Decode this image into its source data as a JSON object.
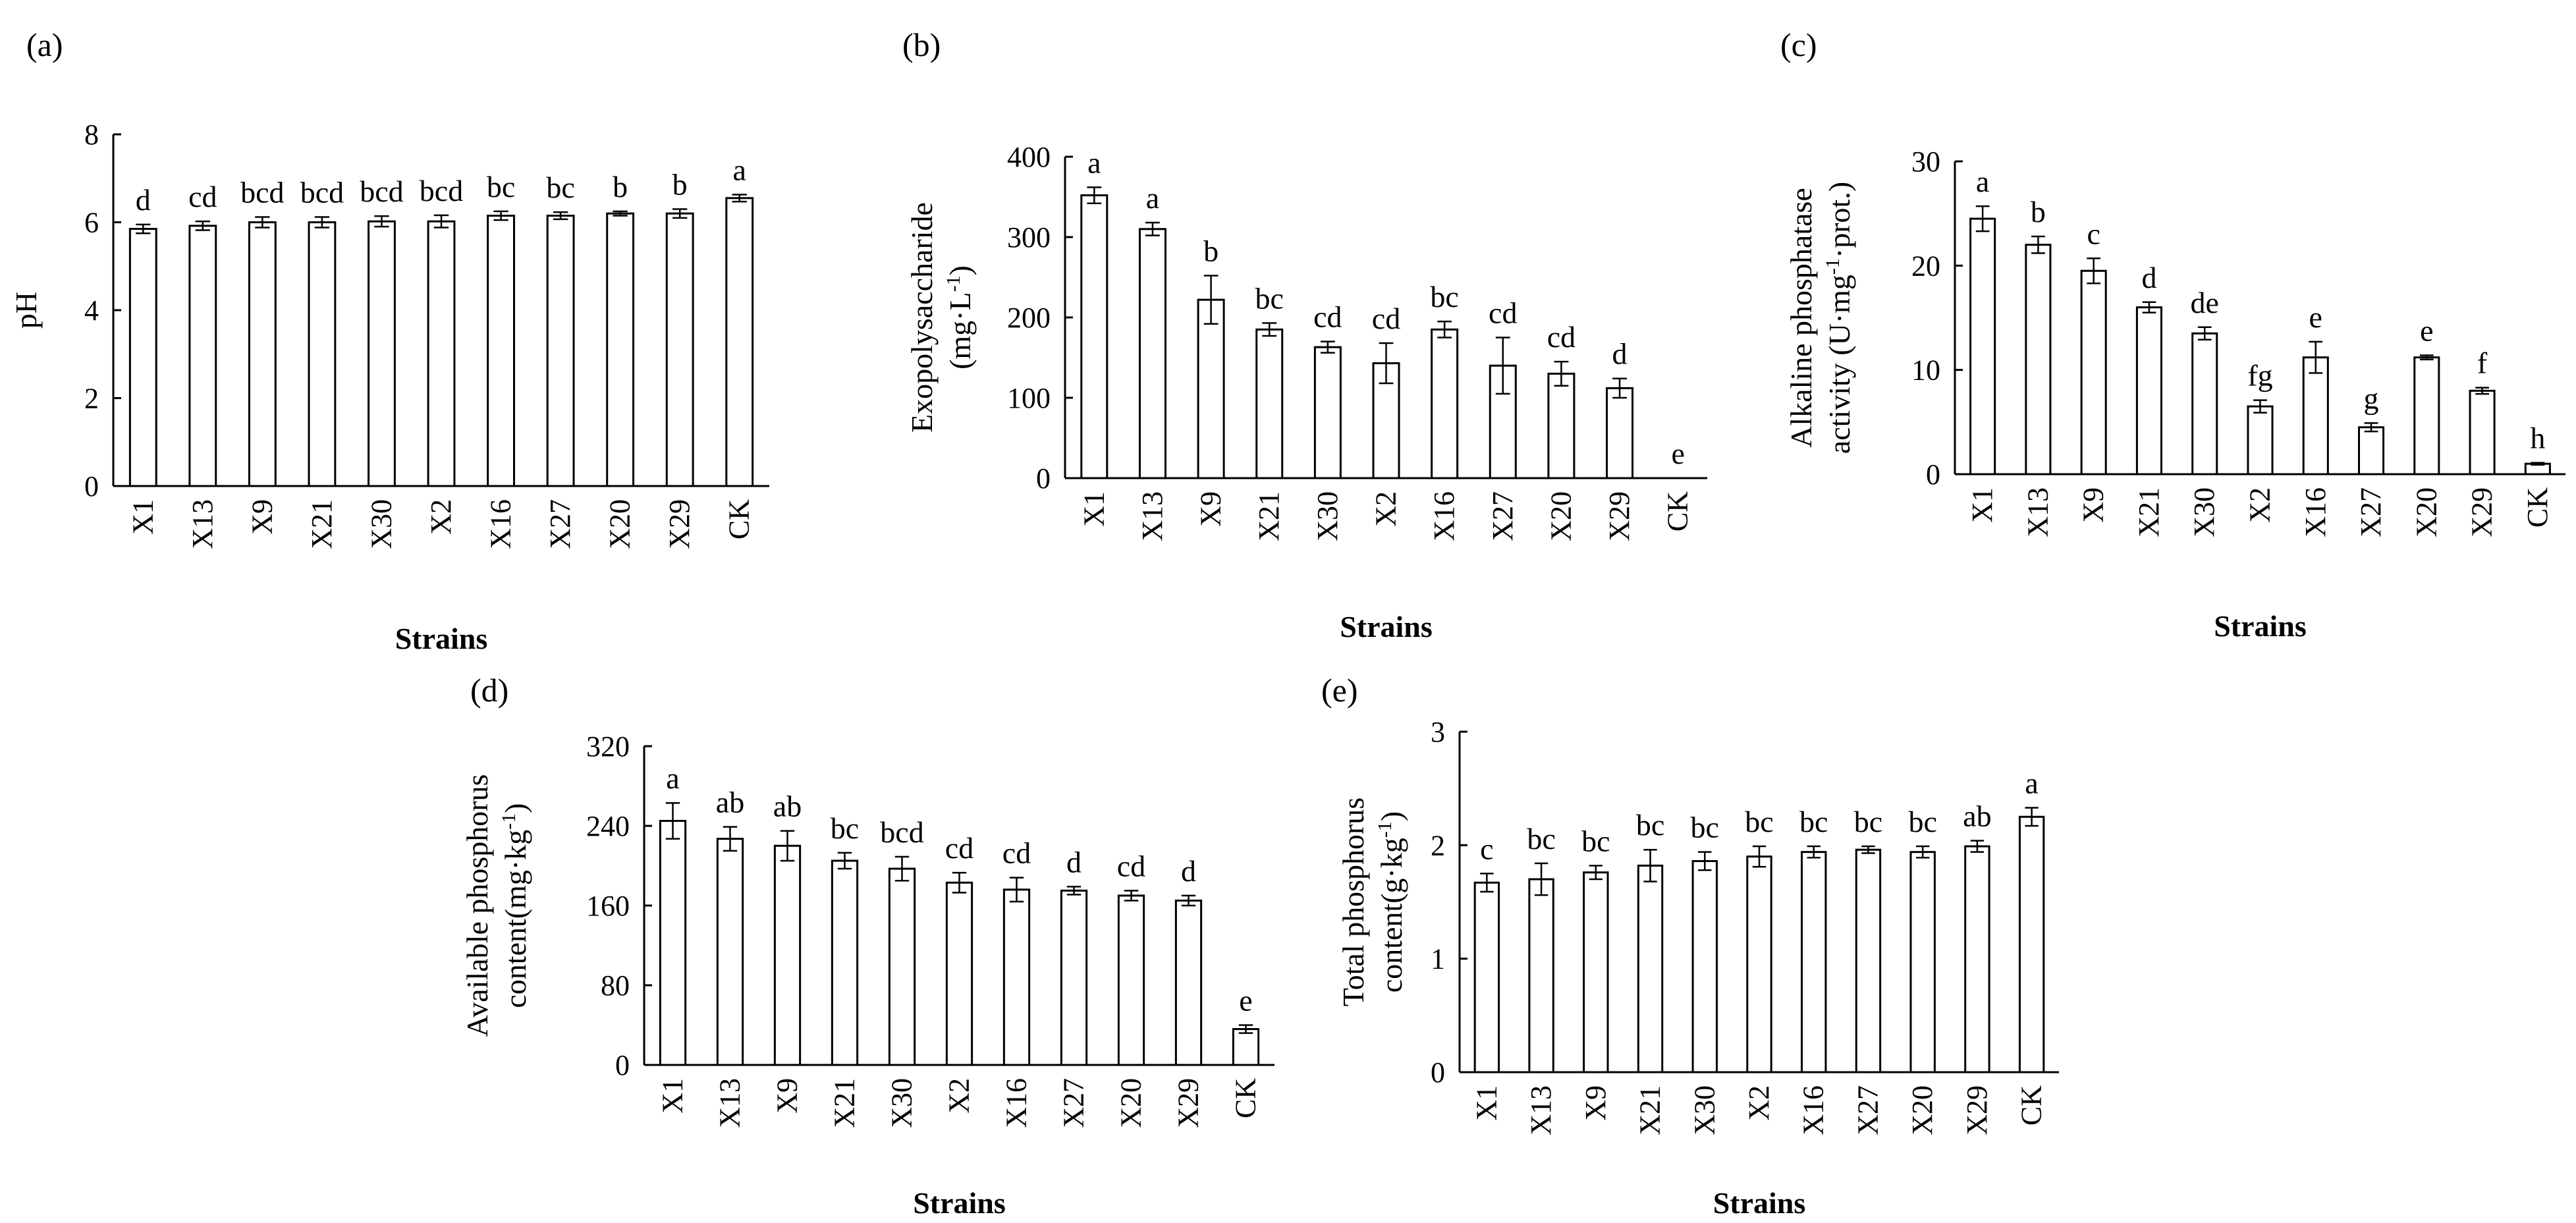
{
  "chart_data": [
    {
      "type": "bar",
      "panel": "(a)",
      "categories": [
        "X1",
        "X13",
        "X9",
        "X21",
        "X30",
        "X2",
        "X16",
        "X27",
        "X20",
        "X29",
        "CK"
      ],
      "values": [
        5.85,
        5.92,
        6.0,
        6.0,
        6.02,
        6.02,
        6.15,
        6.15,
        6.2,
        6.2,
        6.55
      ],
      "errors": [
        0.1,
        0.1,
        0.12,
        0.12,
        0.12,
        0.14,
        0.1,
        0.08,
        0.05,
        0.1,
        0.08
      ],
      "letters": [
        "d",
        "cd",
        "bcd",
        "bcd",
        "bcd",
        "bcd",
        "bc",
        "bc",
        "b",
        "b",
        "a"
      ],
      "ylabel": "pH",
      "xlabel": "Strains",
      "ylim": [
        0,
        8
      ],
      "yticks": [
        0,
        2,
        4,
        6,
        8
      ]
    },
    {
      "type": "bar",
      "panel": "(b)",
      "categories": [
        "X1",
        "X13",
        "X9",
        "X21",
        "X30",
        "X2",
        "X16",
        "X27",
        "X20",
        "X29",
        "CK"
      ],
      "values": [
        352,
        310,
        222,
        185,
        163,
        143,
        185,
        140,
        130,
        112,
        0
      ],
      "errors": [
        10,
        8,
        30,
        8,
        7,
        25,
        10,
        35,
        15,
        12,
        0
      ],
      "letters": [
        "a",
        "a",
        "b",
        "bc",
        "cd",
        "cd",
        "bc",
        "cd",
        "cd",
        "d",
        "e"
      ],
      "ylabel_line1": "Exopolysaccharide",
      "ylabel_line2": "(mg·L",
      "ylabel_sup": "-1",
      "ylabel_end": ")",
      "xlabel": "Strains",
      "ylim": [
        0,
        400
      ],
      "yticks": [
        0,
        100,
        200,
        300,
        400
      ]
    },
    {
      "type": "bar",
      "panel": "(c)",
      "categories": [
        "X1",
        "X13",
        "X9",
        "X21",
        "X30",
        "X2",
        "X16",
        "X27",
        "X20",
        "X29",
        "CK"
      ],
      "values": [
        24.5,
        22.0,
        19.5,
        16.0,
        13.5,
        6.5,
        11.2,
        4.5,
        11.2,
        8.0,
        1.0
      ],
      "errors": [
        1.2,
        0.8,
        1.2,
        0.5,
        0.6,
        0.6,
        1.5,
        0.4,
        0.2,
        0.3,
        0.1
      ],
      "letters": [
        "a",
        "b",
        "c",
        "d",
        "de",
        "fg",
        "e",
        "g",
        "e",
        "f",
        "h"
      ],
      "ylabel_line1": "Alkaline phosphatase",
      "ylabel_line2": "activity (U·mg",
      "ylabel_sup": "-1",
      "ylabel_end": "·prot.)",
      "xlabel": "Strains",
      "ylim": [
        0,
        30
      ],
      "yticks": [
        0,
        10,
        20,
        30
      ]
    },
    {
      "type": "bar",
      "panel": "(d)",
      "categories": [
        "X1",
        "X13",
        "X9",
        "X21",
        "X30",
        "X2",
        "X16",
        "X27",
        "X20",
        "X29",
        "CK"
      ],
      "values": [
        245,
        227,
        220,
        205,
        197,
        183,
        176,
        175,
        170,
        165,
        36
      ],
      "errors": [
        18,
        12,
        15,
        8,
        12,
        10,
        12,
        4,
        5,
        5,
        4
      ],
      "letters": [
        "a",
        "ab",
        "ab",
        "bc",
        "bcd",
        "cd",
        "cd",
        "d",
        "cd",
        "d",
        "e"
      ],
      "ylabel_line1": "Available phosphorus",
      "ylabel_line2": "content(mg·kg",
      "ylabel_sup": "-1",
      "ylabel_end": ")",
      "xlabel": "Strains",
      "ylim": [
        0,
        320
      ],
      "yticks": [
        0,
        80,
        160,
        240,
        320
      ]
    },
    {
      "type": "bar",
      "panel": "(e)",
      "categories": [
        "X1",
        "X13",
        "X9",
        "X21",
        "X30",
        "X2",
        "X16",
        "X27",
        "X20",
        "X29",
        "CK"
      ],
      "values": [
        1.67,
        1.7,
        1.76,
        1.82,
        1.86,
        1.9,
        1.94,
        1.96,
        1.94,
        1.99,
        2.25
      ],
      "errors": [
        0.08,
        0.14,
        0.06,
        0.14,
        0.08,
        0.09,
        0.05,
        0.03,
        0.05,
        0.05,
        0.08
      ],
      "letters": [
        "c",
        "bc",
        "bc",
        "bc",
        "bc",
        "bc",
        "bc",
        "bc",
        "bc",
        "ab",
        "a"
      ],
      "ylabel_line1": "Total phosphorus",
      "ylabel_line2": "content(g·kg",
      "ylabel_sup": "-1",
      "ylabel_end": ")",
      "xlabel": "Strains",
      "ylim": [
        0,
        3
      ],
      "yticks": [
        0,
        1,
        2,
        3
      ]
    }
  ]
}
